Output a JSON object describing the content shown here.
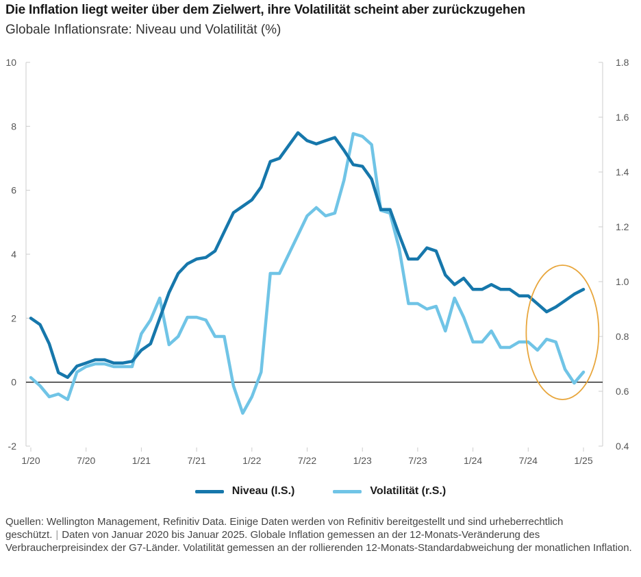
{
  "title": "Die Inflation liegt weiter über dem Zielwert, ihre Volatilität scheint aber zurückzugehen",
  "subtitle": "Globale Inflationsrate: Niveau und Volatilität (%)",
  "legend": {
    "niveau_label": "Niveau (l.S.)",
    "volatilitaet_label": "Volatilität (r.S.)"
  },
  "source": {
    "part1": "Quellen: Wellington Management, Refinitiv Data. Einige Daten werden von Refinitiv bereitgestellt und sind urheberrechtlich geschützt.",
    "separator": "|",
    "part2": "Daten von Januar 2020 bis Januar 2025. Globale Inflation gemessen an der 12-Monats-Veränderung des Verbraucherpreisindex der G7-Länder. Volatilität gemessen an der rollierenden 12-Monats-Standardabweichung der monatlichen Inflation."
  },
  "colors": {
    "niveau": "#1677ab",
    "volatilitaet": "#70c4e6",
    "highlight_circle": "#e8a63c",
    "zero_line": "#1a1a1a",
    "axis": "#cccccc"
  },
  "chart_data": {
    "type": "line",
    "x_tick_labels": [
      "1/20",
      "7/20",
      "1/21",
      "7/21",
      "1/22",
      "7/22",
      "1/23",
      "7/23",
      "1/24",
      "7/24",
      "1/25"
    ],
    "x": [
      "2020-01",
      "2020-02",
      "2020-03",
      "2020-04",
      "2020-05",
      "2020-06",
      "2020-07",
      "2020-08",
      "2020-09",
      "2020-10",
      "2020-11",
      "2020-12",
      "2021-01",
      "2021-02",
      "2021-03",
      "2021-04",
      "2021-05",
      "2021-06",
      "2021-07",
      "2021-08",
      "2021-09",
      "2021-10",
      "2021-11",
      "2021-12",
      "2022-01",
      "2022-02",
      "2022-03",
      "2022-04",
      "2022-05",
      "2022-06",
      "2022-07",
      "2022-08",
      "2022-09",
      "2022-10",
      "2022-11",
      "2022-12",
      "2023-01",
      "2023-02",
      "2023-03",
      "2023-04",
      "2023-05",
      "2023-06",
      "2023-07",
      "2023-08",
      "2023-09",
      "2023-10",
      "2023-11",
      "2023-12",
      "2024-01",
      "2024-02",
      "2024-03",
      "2024-04",
      "2024-05",
      "2024-06",
      "2024-07",
      "2024-08",
      "2024-09",
      "2024-10",
      "2024-11",
      "2024-12",
      "2025-01"
    ],
    "y_left": {
      "ticks": [
        -2,
        0,
        2,
        4,
        6,
        8,
        10
      ],
      "range": [
        -2,
        10
      ]
    },
    "y_right": {
      "ticks": [
        0.4,
        0.6,
        0.8,
        1.0,
        1.2,
        1.4,
        1.6,
        1.8
      ],
      "range": [
        0.4,
        1.8
      ]
    },
    "zero_line": true,
    "series": [
      {
        "name": "Niveau (l.S.)",
        "axis": "left",
        "values": [
          2.0,
          1.8,
          1.2,
          0.3,
          0.15,
          0.5,
          0.6,
          0.7,
          0.7,
          0.6,
          0.6,
          0.65,
          1.0,
          1.2,
          2.0,
          2.8,
          3.4,
          3.7,
          3.85,
          3.9,
          4.1,
          4.7,
          5.3,
          5.5,
          5.7,
          6.1,
          6.9,
          7.0,
          7.4,
          7.8,
          7.55,
          7.45,
          7.55,
          7.65,
          7.25,
          6.8,
          6.75,
          6.35,
          5.4,
          5.4,
          4.6,
          3.85,
          3.85,
          4.2,
          4.1,
          3.35,
          3.05,
          3.25,
          2.9,
          2.9,
          3.05,
          2.9,
          2.9,
          2.7,
          2.7,
          2.45,
          2.2,
          2.35,
          2.55,
          2.75,
          2.9
        ]
      },
      {
        "name": "Volatilität (r.S.)",
        "axis": "right",
        "values": [
          0.65,
          0.62,
          0.58,
          0.59,
          0.57,
          0.67,
          0.69,
          0.7,
          0.7,
          0.69,
          0.69,
          0.69,
          0.81,
          0.86,
          0.94,
          0.77,
          0.8,
          0.87,
          0.87,
          0.86,
          0.8,
          0.8,
          0.62,
          0.52,
          0.58,
          0.67,
          1.03,
          1.03,
          1.1,
          1.17,
          1.24,
          1.27,
          1.24,
          1.25,
          1.37,
          1.54,
          1.53,
          1.5,
          1.26,
          1.25,
          1.12,
          0.92,
          0.92,
          0.9,
          0.91,
          0.82,
          0.94,
          0.87,
          0.78,
          0.78,
          0.82,
          0.76,
          0.76,
          0.78,
          0.78,
          0.75,
          0.79,
          0.78,
          0.68,
          0.63,
          0.67
        ]
      }
    ],
    "annotation": {
      "type": "ellipse",
      "from": "2024-08",
      "to": "2025-01"
    }
  }
}
